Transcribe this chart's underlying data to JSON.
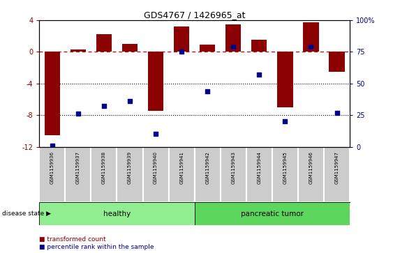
{
  "title": "GDS4767 / 1426965_at",
  "samples": [
    "GSM1159936",
    "GSM1159937",
    "GSM1159938",
    "GSM1159939",
    "GSM1159940",
    "GSM1159941",
    "GSM1159942",
    "GSM1159943",
    "GSM1159944",
    "GSM1159945",
    "GSM1159946",
    "GSM1159947"
  ],
  "transformed_count": [
    -10.5,
    0.3,
    2.2,
    1.0,
    -7.5,
    3.2,
    0.9,
    3.5,
    1.5,
    -7.0,
    3.7,
    -2.5
  ],
  "percentile_rank": [
    1,
    26,
    32,
    36,
    10,
    75,
    44,
    79,
    57,
    20,
    79,
    27
  ],
  "bar_color": "#8B0000",
  "dot_color": "#00008B",
  "ylim_left": [
    -12,
    4
  ],
  "ylim_right": [
    0,
    100
  ],
  "yticks_left": [
    -12,
    -8,
    -4,
    0,
    4
  ],
  "yticks_right": [
    0,
    25,
    50,
    75,
    100
  ],
  "dotted_lines": [
    -4,
    -8
  ],
  "healthy_samples": 6,
  "healthy_color": "#90EE90",
  "tumor_color": "#5CD65C",
  "healthy_label": "healthy",
  "tumor_label": "pancreatic tumor",
  "disease_state_label": "disease state",
  "legend_bar_label": "transformed count",
  "legend_dot_label": "percentile rank within the sample",
  "background_color": "#ffffff",
  "label_bg_color": "#cccccc",
  "label_border_color": "#ffffff"
}
